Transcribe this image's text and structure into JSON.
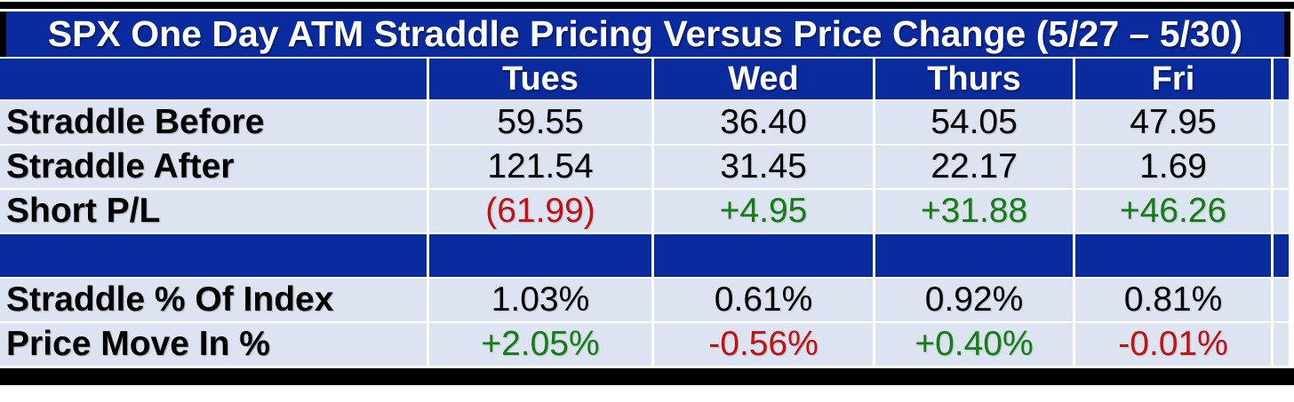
{
  "title": "SPX One Day ATM Straddle Pricing Versus Price Change (5/27 – 5/30)",
  "columns": [
    "Tues",
    "Wed",
    "Thurs",
    "Fri"
  ],
  "rows": [
    {
      "label": "Straddle Before",
      "values": [
        "59.55",
        "36.40",
        "54.05",
        "47.95"
      ]
    },
    {
      "label": "Straddle After",
      "values": [
        "121.54",
        "31.45",
        "22.17",
        "1.69"
      ]
    },
    {
      "label": "Short P/L",
      "values": [
        "(61.99)",
        "+4.95",
        "+31.88",
        "+46.26"
      ]
    },
    {
      "label": "Straddle % Of Index",
      "values": [
        "1.03%",
        "0.61%",
        "0.92%",
        "0.81%"
      ]
    },
    {
      "label": "Price Move In %",
      "values": [
        "+2.05%",
        "-0.56%",
        "+0.40%",
        "-0.01%"
      ]
    }
  ],
  "colors": {
    "header_blue": "#0a2b9e",
    "row_background": "#dce3f1",
    "positive_green": "#147d14",
    "negative_red": "#c21111",
    "header_text": "#ffffff",
    "body_text": "#000000"
  },
  "chart_data": {
    "type": "table",
    "title": "SPX One Day ATM Straddle Pricing Versus Price Change (5/27 – 5/30)",
    "columns": [
      "Tues",
      "Wed",
      "Thurs",
      "Fri"
    ],
    "rows": [
      {
        "label": "Straddle Before",
        "values": [
          59.55,
          36.4,
          54.05,
          47.95
        ]
      },
      {
        "label": "Straddle After",
        "values": [
          121.54,
          31.45,
          22.17,
          1.69
        ]
      },
      {
        "label": "Short P/L",
        "values": [
          -61.99,
          4.95,
          31.88,
          46.26
        ]
      },
      {
        "label": "Straddle % Of Index",
        "values": [
          1.03,
          0.61,
          0.92,
          0.81
        ],
        "unit": "%"
      },
      {
        "label": "Price Move In %",
        "values": [
          2.05,
          -0.56,
          0.4,
          -0.01
        ],
        "unit": "%"
      }
    ],
    "value_color_coding": "negative values red (parentheses or minus), positive values green with + sign"
  }
}
